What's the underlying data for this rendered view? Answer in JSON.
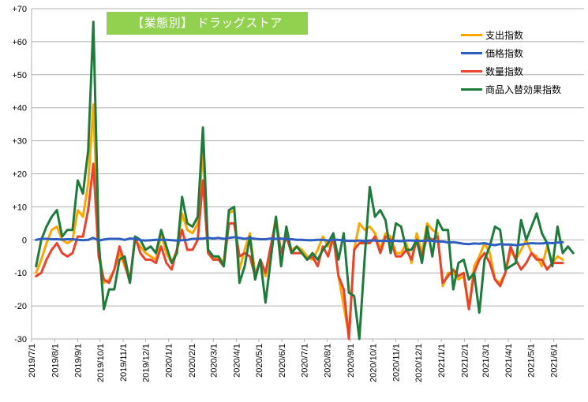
{
  "chart_data": {
    "type": "line",
    "title": "【業態別】 ドラッグストア",
    "xlabel": "",
    "ylabel": "",
    "ylim": [
      -30,
      70
    ],
    "yticks": [
      "-30",
      "-20",
      "-10",
      "0",
      "+10",
      "+20",
      "+30",
      "+40",
      "+50",
      "+60",
      "+70"
    ],
    "x_start": "2019-07-07",
    "x_step_days": 7,
    "x_tick_labels": [
      "2019/7/1",
      "2019/8/1",
      "2019/9/1",
      "2019/10/1",
      "2019/11/1",
      "2019/12/1",
      "2020/1/1",
      "2020/2/1",
      "2020/3/1",
      "2020/4/1",
      "2020/5/1",
      "2020/6/1",
      "2020/7/1",
      "2020/8/1",
      "2020/9/1",
      "2020/10/1",
      "2020/11/1",
      "2020/12/1",
      "2021/1/1",
      "2021/2/1",
      "2021/3/1",
      "2021/4/1",
      "2021/5/1",
      "2021/6/1"
    ],
    "grid": "horizontal",
    "legend_position": "top-right",
    "series": [
      {
        "name": "支出指数",
        "color": "#ffa500",
        "values": [
          -10,
          -6,
          -1,
          3,
          4,
          0,
          -1,
          0,
          9,
          7,
          17,
          41,
          -3,
          -13,
          -12,
          -9,
          -4,
          -8,
          -12,
          0,
          -2,
          -4,
          -5,
          -6,
          2,
          -4,
          -7,
          -3,
          8,
          3,
          2,
          5,
          27,
          -4,
          -6,
          -5,
          -7,
          8,
          9,
          -9,
          -3,
          2,
          -10,
          -7,
          -11,
          -3,
          7,
          -4,
          2,
          -3,
          -2,
          -3,
          -5,
          -6,
          -3,
          1,
          -2,
          1,
          -11,
          -20,
          -29,
          -3,
          5,
          3,
          4,
          2,
          -3,
          2,
          1,
          -4,
          -4,
          -1,
          -7,
          2,
          -4,
          5,
          3,
          2,
          -14,
          -10,
          -10,
          -12,
          -11,
          -21,
          -8,
          -5,
          -1,
          -4,
          -12,
          -13,
          -10,
          -3,
          -6,
          -3,
          0,
          -4,
          -5,
          -8,
          -2,
          -7,
          -5,
          -6
        ],
        "series_note": ""
      },
      {
        "name": "価格指数",
        "color": "#2e5fbf",
        "values": [
          0,
          0.3,
          0.3,
          0.2,
          0.2,
          0.1,
          0.2,
          0.2,
          0,
          -0.1,
          0,
          0.6,
          -0.2,
          0.1,
          0.3,
          0.3,
          0.3,
          0,
          0.4,
          0.3,
          -0.1,
          -0.2,
          -0.1,
          0,
          0,
          0,
          -0.1,
          -0.2,
          -0.1,
          0,
          0.3,
          0.3,
          0.4,
          0.6,
          0.4,
          0.6,
          0.3,
          0.6,
          0.8,
          0.6,
          0.3,
          0.6,
          0.3,
          0.2,
          0.2,
          0.4,
          0.3,
          0.4,
          0.2,
          0.2,
          0,
          0,
          -0.1,
          -0.1,
          0,
          0,
          -0.2,
          0,
          0,
          -0.2,
          -0.3,
          -0.3,
          -0.2,
          -0.4,
          -0.2,
          -0.2,
          -0.3,
          -0.3,
          -0.3,
          -0.3,
          -0.4,
          -0.2,
          -0.2,
          -0.3,
          -0.3,
          -0.2,
          -0.3,
          -0.5,
          -0.5,
          -0.8,
          -0.7,
          -0.9,
          -1.2,
          -1.3,
          -1.1,
          -1.2,
          -1.0,
          -1.4,
          -1.6,
          -1.3,
          -1.4,
          -1.4,
          -1.6,
          -1.4,
          -1.2,
          -1.0,
          -1.1,
          -1.1,
          -0.9,
          -1.0,
          -0.8,
          -0.7
        ],
        "series_note": ""
      },
      {
        "name": "数量指数",
        "color": "#e8432c",
        "values": [
          -11,
          -10,
          -6,
          -3,
          -1,
          -4,
          -5,
          -4,
          1,
          1,
          9,
          23,
          -5,
          -12,
          -13,
          -9,
          -2,
          -7,
          -13,
          1,
          -4,
          -6,
          -6,
          -7,
          -2,
          -7,
          -9,
          -3,
          3,
          -3,
          -3,
          0,
          18,
          -4,
          -6,
          -6,
          -8,
          5,
          5,
          -5,
          -4,
          -5,
          -11,
          -6,
          -10,
          -2,
          6,
          -4,
          1,
          -4,
          -4,
          -4,
          -6,
          -5,
          -8,
          -2,
          -5,
          1,
          -11,
          -15,
          -30,
          -3,
          -1,
          -1,
          -1,
          1,
          -4,
          1,
          0,
          -5,
          -5,
          -3,
          -6,
          0,
          -5,
          1,
          0,
          1,
          -13,
          -11,
          -9,
          -11,
          -10,
          -21,
          -10,
          -6,
          -4,
          -7,
          -12,
          -14,
          -10,
          -2,
          -6,
          -9,
          -7,
          -4,
          -6,
          -6,
          -9,
          -7,
          -7,
          -7
        ],
        "series_note": ""
      },
      {
        "name": "商品入替効果指数",
        "color": "#1e7b3c",
        "values": [
          -8,
          0,
          4,
          7,
          9,
          1,
          3,
          3,
          18,
          14,
          27,
          66,
          0,
          -21,
          -15,
          -15,
          -6,
          -5,
          -13,
          1,
          0,
          -3,
          -2,
          -4,
          3,
          -2,
          -7,
          -4,
          13,
          5,
          4,
          7,
          34,
          -3,
          -5,
          -5,
          -8,
          9,
          10,
          -13,
          -8,
          1,
          -12,
          -6,
          -19,
          -6,
          7,
          -8,
          4,
          -4,
          -2,
          -4,
          -6,
          -4,
          -6,
          -3,
          -1,
          2,
          -6,
          2,
          -16,
          -17,
          -31,
          -6,
          16,
          7,
          9,
          6,
          -4,
          5,
          4,
          -3,
          -3,
          0,
          -7,
          4,
          -5,
          6,
          3,
          3,
          -15,
          -7,
          -6,
          -12,
          -10,
          -22,
          -6,
          -2,
          4,
          3,
          -9,
          -8,
          -7,
          6,
          0,
          4,
          8,
          2,
          -1,
          -8,
          4,
          -4,
          -2,
          -4
        ],
        "series_note": ""
      }
    ]
  }
}
